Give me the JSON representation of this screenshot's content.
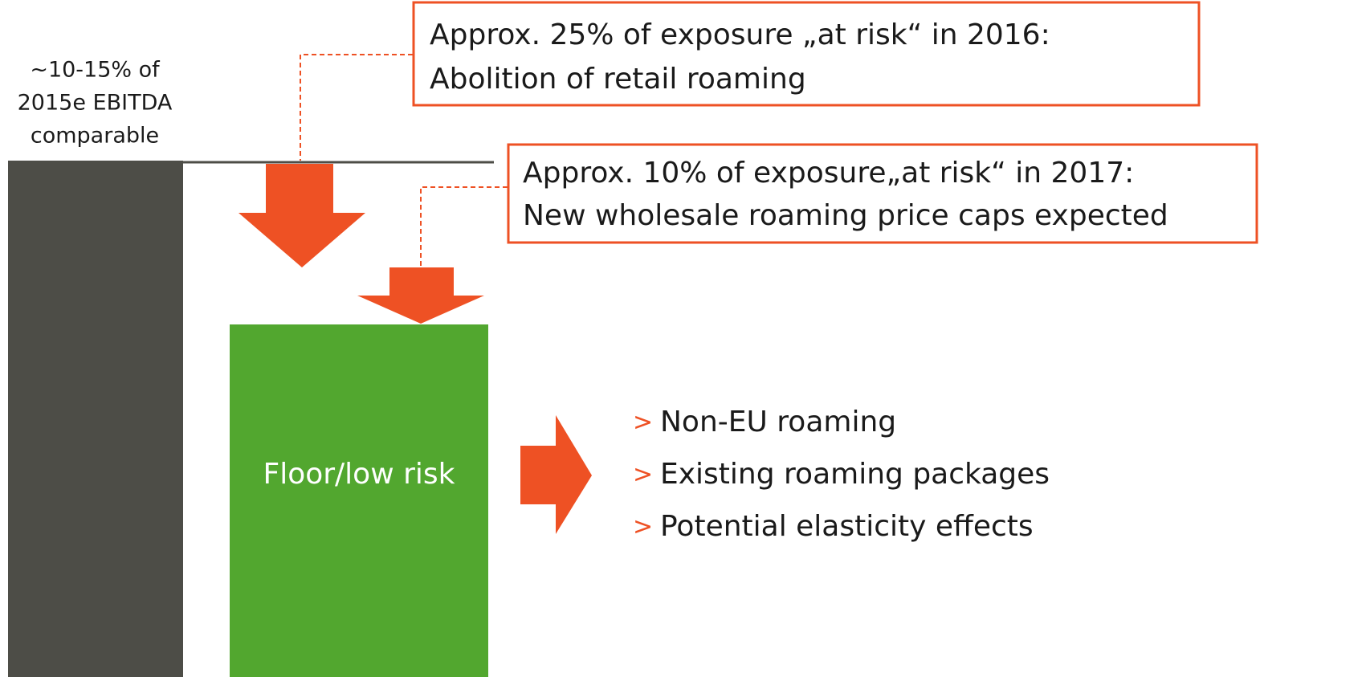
{
  "exposure_label": [
    "~10-15% of",
    "2015e EBITDA",
    "comparable"
  ],
  "callouts": [
    {
      "lines": [
        "Approx. 25% of exposure „at risk“ in 2016:",
        "Abolition of retail roaming"
      ]
    },
    {
      "lines": [
        "Approx. 10% of exposure„at risk“ in 2017:",
        "New wholesale roaming price caps expected"
      ]
    }
  ],
  "floor_box": {
    "label": "Floor/low risk"
  },
  "bullet_marker": ">",
  "bullets": [
    "Non-EU roaming",
    "Existing roaming packages",
    "Potential elasticity effects"
  ]
}
